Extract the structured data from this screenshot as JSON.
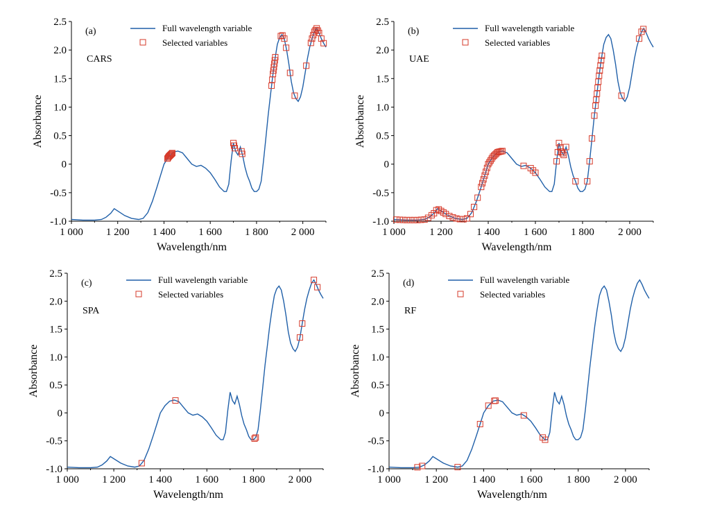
{
  "chart_data": [
    {
      "type": "line",
      "panel_label": "(a)",
      "method": "CARS",
      "xlabel": "Wavelength/nm",
      "ylabel": "Absorbance",
      "xlim": [
        1000,
        2100
      ],
      "ylim": [
        -1.0,
        2.5
      ],
      "xticks": [
        "1 000",
        "1 200",
        "1 400",
        "1 600",
        "1 800",
        "2 000"
      ],
      "yticks": [
        "-1.0",
        "-0.5",
        "0",
        "0.5",
        "1.0",
        "1.5",
        "2.0",
        "2.5"
      ],
      "legend": [
        "Full wavelength variable",
        "Selected variables"
      ],
      "legend_position": "top-center",
      "selected_x": [
        1415,
        1418,
        1421,
        1424,
        1427,
        1430,
        1433,
        1436,
        1700,
        1703,
        1706,
        1735,
        1738,
        1865,
        1868,
        1871,
        1873,
        1875,
        1877,
        1879,
        1881,
        1905,
        1912,
        1920,
        1928,
        1945,
        1965,
        2015,
        2035,
        2040,
        2045,
        2050,
        2055,
        2060,
        2065,
        2070,
        2080,
        2090
      ]
    },
    {
      "type": "line",
      "panel_label": "(b)",
      "method": "UAE",
      "xlabel": "Wavelength/nm",
      "ylabel": "Absorbance",
      "xlim": [
        1000,
        2100
      ],
      "ylim": [
        -1.0,
        2.5
      ],
      "xticks": [
        "1 000",
        "1 200",
        "1 400",
        "1 600",
        "1 800",
        "2 000"
      ],
      "yticks": [
        "-1.0",
        "-0.5",
        "0",
        "0.5",
        "1.0",
        "1.5",
        "2.0",
        "2.5"
      ],
      "legend": [
        "Full wavelength variable",
        "Selected variables"
      ],
      "legend_position": "top-center",
      "selected_x": [
        1010,
        1025,
        1040,
        1055,
        1070,
        1085,
        1100,
        1115,
        1130,
        1145,
        1160,
        1170,
        1180,
        1190,
        1200,
        1210,
        1220,
        1235,
        1250,
        1265,
        1280,
        1295,
        1310,
        1325,
        1340,
        1355,
        1370,
        1375,
        1380,
        1385,
        1390,
        1395,
        1400,
        1405,
        1410,
        1415,
        1420,
        1425,
        1430,
        1435,
        1440,
        1445,
        1450,
        1455,
        1460,
        1550,
        1580,
        1590,
        1600,
        1690,
        1695,
        1700,
        1705,
        1710,
        1715,
        1720,
        1730,
        1770,
        1820,
        1830,
        1840,
        1850,
        1855,
        1858,
        1861,
        1864,
        1867,
        1870,
        1873,
        1876,
        1879,
        1882,
        1965,
        2040,
        2050,
        2058
      ]
    },
    {
      "type": "line",
      "panel_label": "(c)",
      "method": "SPA",
      "xlabel": "Wavelength/nm",
      "ylabel": "Absorbance",
      "xlim": [
        1000,
        2100
      ],
      "ylim": [
        -1.0,
        2.5
      ],
      "xticks": [
        "1 000",
        "1 200",
        "1 400",
        "1 600",
        "1 800",
        "2 000"
      ],
      "yticks": [
        "-1.0",
        "-0.5",
        "0",
        "0.5",
        "1.0",
        "1.5",
        "2.0",
        "2.5"
      ],
      "legend": [
        "Full wavelength variable",
        "Selected variables"
      ],
      "legend_position": "top-center",
      "selected_x": [
        1320,
        1465,
        1805,
        1810,
        2000,
        2010,
        2060,
        2075
      ]
    },
    {
      "type": "line",
      "panel_label": "(d)",
      "method": "RF",
      "xlabel": "Wavelength/nm",
      "ylabel": "Absorbance",
      "xlim": [
        1000,
        2100
      ],
      "ylim": [
        -1.0,
        2.5
      ],
      "xticks": [
        "1 000",
        "1 200",
        "1 400",
        "1 600",
        "1 800",
        "2 000"
      ],
      "yticks": [
        "-1.0",
        "-0.5",
        "0",
        "0.5",
        "1.0",
        "1.5",
        "2.0",
        "2.5"
      ],
      "legend": [
        "Full wavelength variable",
        "Selected variables"
      ],
      "legend_position": "top-center",
      "selected_x": [
        1120,
        1140,
        1290,
        1385,
        1420,
        1445,
        1450,
        1570,
        1650,
        1660
      ]
    }
  ],
  "spectrum": {
    "series_name": "Full wavelength variable",
    "x": [
      1000,
      1050,
      1100,
      1130,
      1150,
      1170,
      1185,
      1200,
      1230,
      1260,
      1290,
      1310,
      1330,
      1350,
      1370,
      1385,
      1400,
      1420,
      1440,
      1460,
      1480,
      1500,
      1520,
      1540,
      1560,
      1580,
      1600,
      1620,
      1640,
      1660,
      1670,
      1680,
      1690,
      1700,
      1710,
      1720,
      1730,
      1740,
      1750,
      1760,
      1770,
      1780,
      1790,
      1800,
      1810,
      1820,
      1830,
      1840,
      1850,
      1860,
      1870,
      1880,
      1890,
      1900,
      1910,
      1920,
      1930,
      1940,
      1950,
      1960,
      1970,
      1980,
      1990,
      2000,
      2010,
      2020,
      2030,
      2040,
      2050,
      2060,
      2070,
      2080,
      2090,
      2100
    ],
    "y": [
      -0.97,
      -0.98,
      -0.98,
      -0.97,
      -0.93,
      -0.86,
      -0.78,
      -0.82,
      -0.9,
      -0.95,
      -0.97,
      -0.95,
      -0.85,
      -0.65,
      -0.4,
      -0.2,
      0.0,
      0.13,
      0.21,
      0.23,
      0.2,
      0.1,
      0.0,
      -0.04,
      -0.02,
      -0.07,
      -0.15,
      -0.27,
      -0.4,
      -0.48,
      -0.48,
      -0.35,
      0.05,
      0.37,
      0.22,
      0.16,
      0.3,
      0.15,
      -0.05,
      -0.2,
      -0.3,
      -0.42,
      -0.48,
      -0.48,
      -0.44,
      -0.3,
      0.05,
      0.45,
      0.85,
      1.2,
      1.55,
      1.85,
      2.1,
      2.22,
      2.27,
      2.2,
      2.0,
      1.75,
      1.45,
      1.25,
      1.15,
      1.1,
      1.18,
      1.35,
      1.6,
      1.85,
      2.05,
      2.2,
      2.32,
      2.38,
      2.3,
      2.2,
      2.12,
      2.05
    ],
    "line_color": "#1f5fa8",
    "marker_color": "#d63a2a"
  }
}
